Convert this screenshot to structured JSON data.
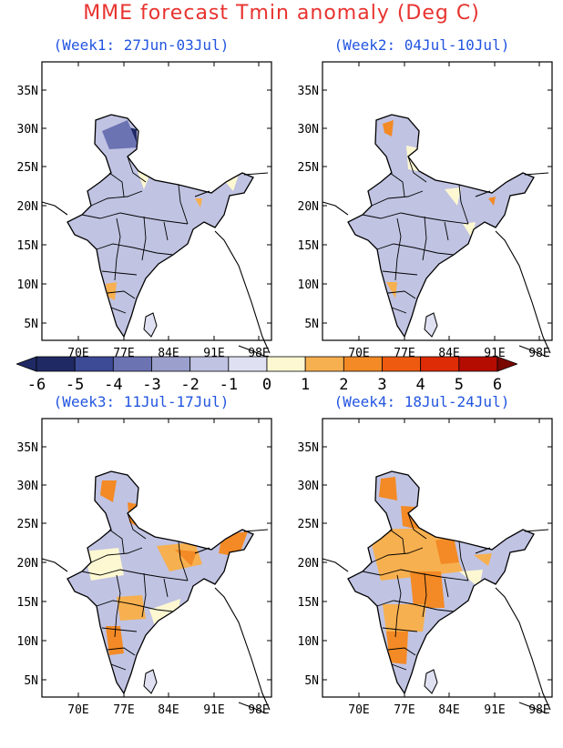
{
  "title": "MME forecast Tmin anomaly (Deg C)",
  "panels": [
    {
      "label": "(Week1: 27Jun-03Jul)"
    },
    {
      "label": "(Week2: 04Jul-10Jul)"
    },
    {
      "label": "(Week3: 11Jul-17Jul)"
    },
    {
      "label": "(Week4: 18Jul-24Jul)"
    }
  ],
  "axes": {
    "lon_ticks": [
      "70E",
      "77E",
      "84E",
      "91E",
      "98E"
    ],
    "lat_ticks": [
      "35N",
      "30N",
      "25N",
      "20N",
      "15N",
      "10N",
      "5N"
    ]
  },
  "colorbar": {
    "tick_labels": [
      "-6",
      "-5",
      "-4",
      "-3",
      "-2",
      "-1",
      "0",
      "1",
      "2",
      "3",
      "4",
      "5",
      "6"
    ],
    "colors": [
      "#1f2a64",
      "#3d4a96",
      "#6b73b3",
      "#9a9fcc",
      "#c0c3e2",
      "#dfe1f2",
      "#fdf8d2",
      "#f7b04f",
      "#f38a25",
      "#ee5a10",
      "#de2c06",
      "#b50c02"
    ]
  }
}
